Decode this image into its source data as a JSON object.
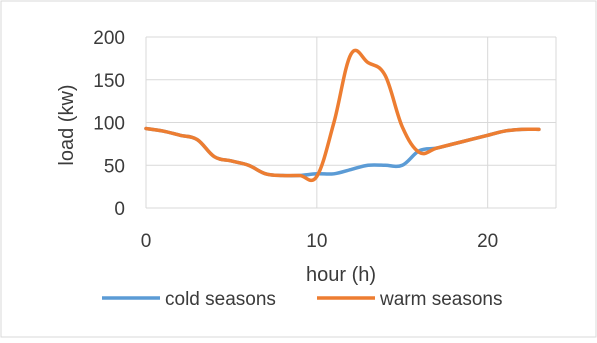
{
  "chart_data": {
    "type": "line",
    "title": "",
    "xlabel": "hour (h)",
    "ylabel": "load (kw)",
    "xlim": [
      0,
      24
    ],
    "ylim": [
      0,
      200
    ],
    "x_ticks": [
      0,
      10,
      20
    ],
    "y_ticks": [
      0,
      50,
      100,
      150,
      200
    ],
    "grid": true,
    "legend_position": "bottom",
    "x": [
      0,
      1,
      2,
      3,
      4,
      5,
      6,
      7,
      8,
      9,
      10,
      11,
      12,
      13,
      14,
      15,
      16,
      17,
      18,
      19,
      20,
      21,
      22,
      23
    ],
    "series": [
      {
        "name": "cold seasons",
        "color": "#5b9bd5",
        "values": [
          93,
          90,
          85,
          80,
          60,
          55,
          50,
          40,
          38,
          38,
          40,
          40,
          45,
          50,
          50,
          50,
          67,
          70,
          75,
          80,
          85,
          90,
          92,
          92
        ]
      },
      {
        "name": "warm seasons",
        "color": "#ed7d31",
        "values": [
          93,
          90,
          85,
          80,
          60,
          55,
          50,
          40,
          38,
          38,
          37,
          100,
          180,
          170,
          155,
          95,
          65,
          70,
          75,
          80,
          85,
          90,
          92,
          92
        ]
      }
    ],
    "gridline_color": "#d9d9d9",
    "frame_color": "#d9d9d9"
  }
}
